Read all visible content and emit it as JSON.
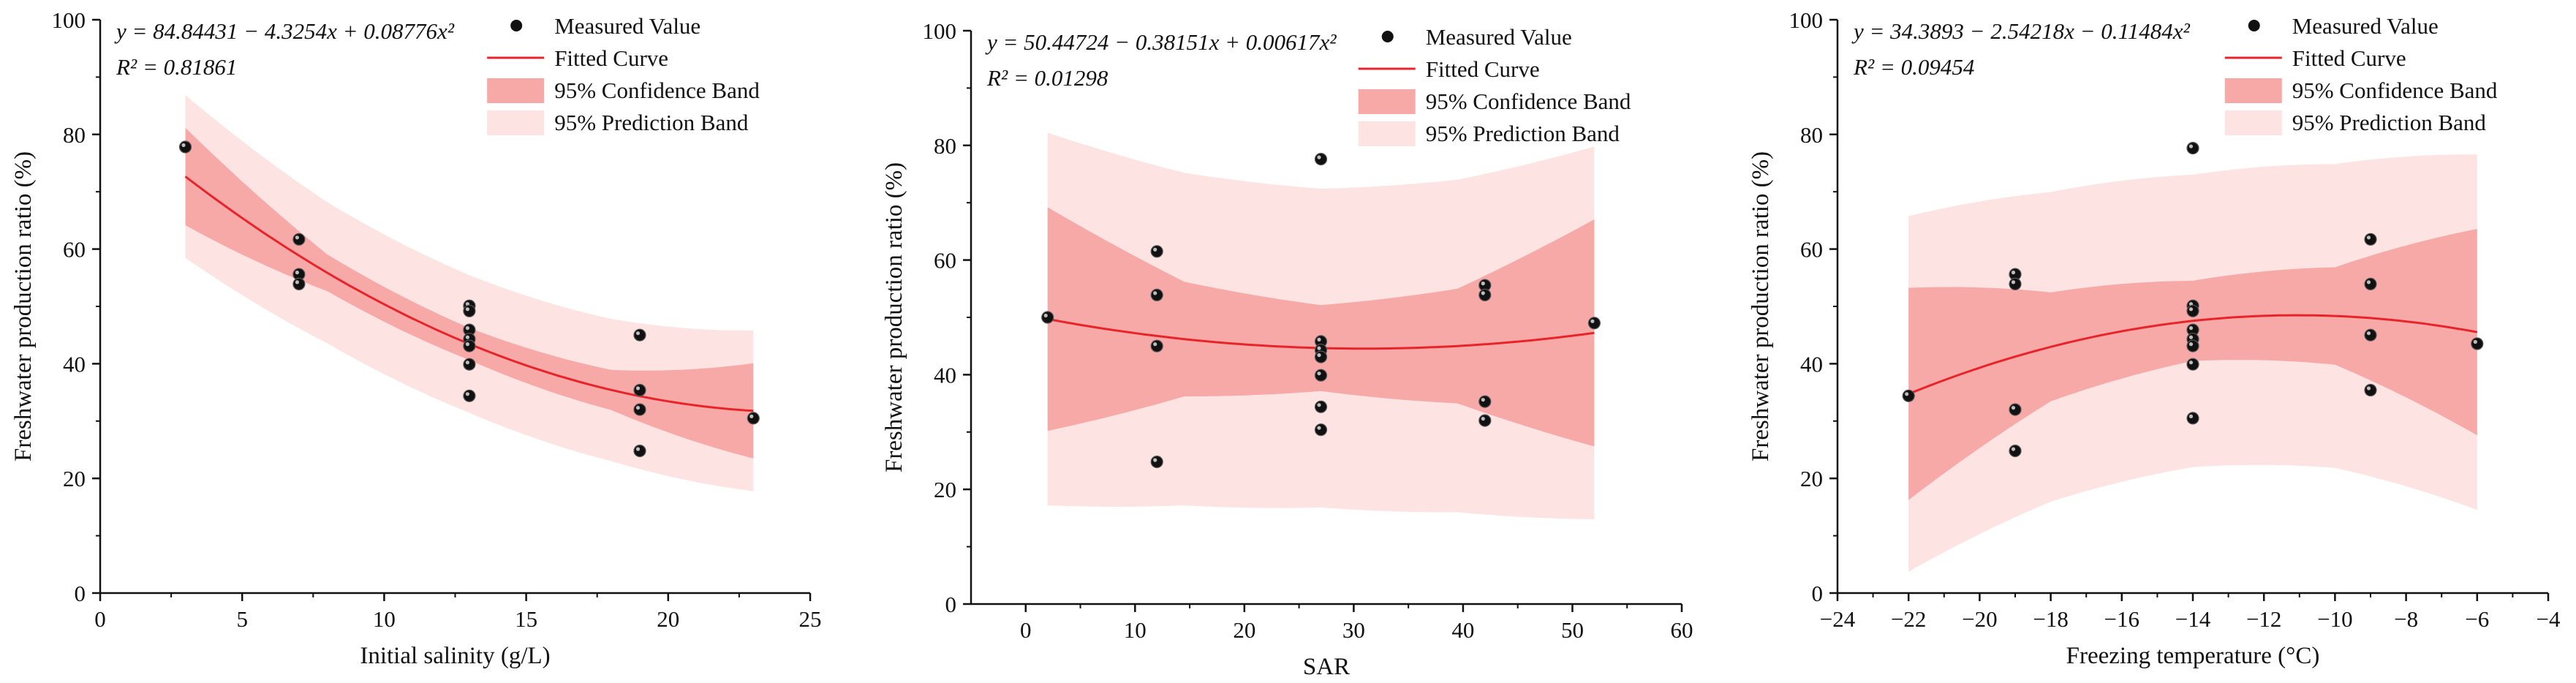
{
  "colors": {
    "fit": "#e8242b",
    "confidence": "#f7a9a8",
    "prediction": "#fde3e2",
    "point": "#111111",
    "axis": "#111111"
  },
  "legend": {
    "measured": "Measured Value",
    "fitted": "Fitted Curve",
    "confidence": "95% Confidence Band",
    "prediction": "95% Prediction Band"
  },
  "chart_data": [
    {
      "type": "scatter",
      "xlabel": "Initial salinity (g/L)",
      "ylabel": "Freshwater production ratio (%)",
      "xlim": [
        0,
        25
      ],
      "ylim": [
        0,
        100
      ],
      "xticks": [
        0,
        5,
        10,
        15,
        20,
        25
      ],
      "yticks": [
        0,
        20,
        40,
        60,
        80,
        100
      ],
      "equation": "y = 84.84431 − 4.3254x + 0.08776x²",
      "r2": "R² = 0.81861",
      "fit": [
        84.84431,
        -4.3254,
        0.08776
      ],
      "fit_range": [
        3,
        23
      ],
      "conf_halfwidth": [
        8.5,
        3.2,
        2.8,
        3.5,
        8.3
      ],
      "pred_halfwidth": [
        14.2,
        12.3,
        12.0,
        12.4,
        14.0
      ],
      "points": [
        [
          3,
          77.8
        ],
        [
          7,
          61.7
        ],
        [
          7,
          55.6
        ],
        [
          7,
          53.9
        ],
        [
          13,
          50.1
        ],
        [
          13,
          49.2
        ],
        [
          13,
          45.9
        ],
        [
          13,
          44.3
        ],
        [
          13,
          43.1
        ],
        [
          13,
          39.9
        ],
        [
          13,
          34.4
        ],
        [
          19,
          45.0
        ],
        [
          19,
          35.4
        ],
        [
          19,
          32.0
        ],
        [
          19,
          24.8
        ],
        [
          23,
          30.5
        ]
      ]
    },
    {
      "type": "scatter",
      "xlabel": "SAR",
      "ylabel": "Freshwater production ratio (%)",
      "xlim": [
        -5,
        60
      ],
      "ylim": [
        0,
        100
      ],
      "xticks": [
        0,
        10,
        20,
        30,
        40,
        50,
        60
      ],
      "yticks": [
        0,
        20,
        40,
        60,
        80,
        100
      ],
      "equation": "y = 50.44724 − 0.38151x + 0.00617x²",
      "r2": "R² = 0.01298",
      "fit": [
        50.44724,
        -0.38151,
        0.00617
      ],
      "fit_range": [
        2,
        52
      ],
      "conf_halfwidth": [
        19.5,
        10.0,
        7.5,
        10.0,
        19.8
      ],
      "pred_halfwidth": [
        32.5,
        29.0,
        27.8,
        29.0,
        32.5
      ],
      "points": [
        [
          2,
          50.0
        ],
        [
          12,
          61.5
        ],
        [
          12,
          53.9
        ],
        [
          12,
          45.0
        ],
        [
          12,
          24.8
        ],
        [
          27,
          77.6
        ],
        [
          27,
          45.8
        ],
        [
          27,
          44.3
        ],
        [
          27,
          43.1
        ],
        [
          27,
          39.9
        ],
        [
          27,
          34.4
        ],
        [
          27,
          30.4
        ],
        [
          42,
          55.6
        ],
        [
          42,
          53.9
        ],
        [
          42,
          35.3
        ],
        [
          42,
          32.0
        ],
        [
          52,
          49.0
        ]
      ]
    },
    {
      "type": "scatter",
      "xlabel": "Freezing temperature (°C)",
      "ylabel": "Freshwater production ratio (%)",
      "xlim": [
        -24,
        -4
      ],
      "ylim": [
        0,
        100
      ],
      "xticks": [
        -24,
        -22,
        -20,
        -18,
        -16,
        -14,
        -12,
        -10,
        -8,
        -6,
        -4
      ],
      "xtick_labels": [
        "−24",
        "−22",
        "−20",
        "−18",
        "−16",
        "−14",
        "−12",
        "−10",
        "−8",
        "−6",
        "−4"
      ],
      "yticks": [
        0,
        20,
        40,
        60,
        80,
        100
      ],
      "equation": "y = 34.3893 − 2.54218x − 0.11484x²",
      "r2": "R² = 0.09454",
      "fit": [
        34.3893,
        -2.54218,
        -0.11484
      ],
      "fit_range": [
        -22,
        -6
      ],
      "conf_halfwidth": [
        18.5,
        9.5,
        7.0,
        8.5,
        18.0
      ],
      "pred_halfwidth": [
        31.0,
        27.0,
        25.5,
        26.5,
        31.0
      ],
      "points": [
        [
          -22,
          34.4
        ],
        [
          -19,
          55.6
        ],
        [
          -19,
          53.9
        ],
        [
          -19,
          32.0
        ],
        [
          -19,
          24.8
        ],
        [
          -14,
          77.6
        ],
        [
          -14,
          50.1
        ],
        [
          -14,
          49.2
        ],
        [
          -14,
          45.9
        ],
        [
          -14,
          44.3
        ],
        [
          -14,
          43.1
        ],
        [
          -14,
          39.9
        ],
        [
          -14,
          30.5
        ],
        [
          -9,
          61.7
        ],
        [
          -9,
          53.9
        ],
        [
          -9,
          45.0
        ],
        [
          -9,
          35.4
        ],
        [
          -6,
          43.5
        ]
      ]
    }
  ]
}
